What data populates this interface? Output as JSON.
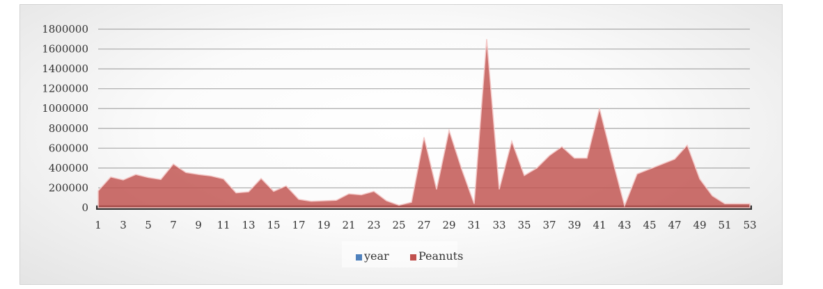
{
  "chart_data": {
    "type": "area",
    "x": [
      1,
      2,
      3,
      4,
      5,
      6,
      7,
      8,
      9,
      10,
      11,
      12,
      13,
      14,
      15,
      16,
      17,
      18,
      19,
      20,
      21,
      22,
      23,
      24,
      25,
      26,
      27,
      28,
      29,
      30,
      31,
      32,
      33,
      34,
      35,
      36,
      37,
      38,
      39,
      40,
      41,
      42,
      43,
      44,
      45,
      46,
      47,
      48,
      49,
      50,
      51,
      52,
      53
    ],
    "x_tick_labels": [
      "1",
      "3",
      "5",
      "7",
      "9",
      "11",
      "13",
      "15",
      "17",
      "19",
      "21",
      "23",
      "25",
      "27",
      "29",
      "31",
      "33",
      "35",
      "37",
      "39",
      "41",
      "43",
      "45",
      "47",
      "49",
      "51",
      "53"
    ],
    "y_tick_labels": [
      "0",
      "200000",
      "400000",
      "600000",
      "800000",
      "1000000",
      "1200000",
      "1400000",
      "1600000",
      "1800000"
    ],
    "ylim": [
      0,
      1800000
    ],
    "grid": true,
    "legend_position": "bottom",
    "series": [
      {
        "name": "year",
        "color": "#4f81bd",
        "values": [
          1961,
          1962,
          1963,
          1964,
          1965,
          1966,
          1967,
          1968,
          1969,
          1970,
          1971,
          1972,
          1973,
          1974,
          1975,
          1976,
          1977,
          1978,
          1979,
          1980,
          1981,
          1982,
          1983,
          1984,
          1985,
          1986,
          1987,
          1988,
          1989,
          1990,
          1991,
          1992,
          1993,
          1994,
          1995,
          1996,
          1997,
          1998,
          1999,
          2000,
          2001,
          2002,
          2003,
          2004,
          2005,
          2006,
          2007,
          2008,
          2009,
          2010,
          2011,
          2012,
          2013
        ]
      },
      {
        "name": "Peanuts",
        "color": "#c0504d",
        "values": [
          170000,
          310000,
          280000,
          335000,
          305000,
          285000,
          440000,
          355000,
          335000,
          320000,
          290000,
          150000,
          160000,
          295000,
          165000,
          220000,
          85000,
          65000,
          70000,
          75000,
          140000,
          130000,
          165000,
          70000,
          25000,
          55000,
          710000,
          185000,
          780000,
          390000,
          40000,
          1700000,
          185000,
          670000,
          325000,
          400000,
          525000,
          615000,
          500000,
          500000,
          1000000,
          500000,
          20000,
          340000,
          390000,
          440000,
          490000,
          630000,
          290000,
          120000,
          40000,
          40000,
          40000
        ]
      }
    ]
  }
}
